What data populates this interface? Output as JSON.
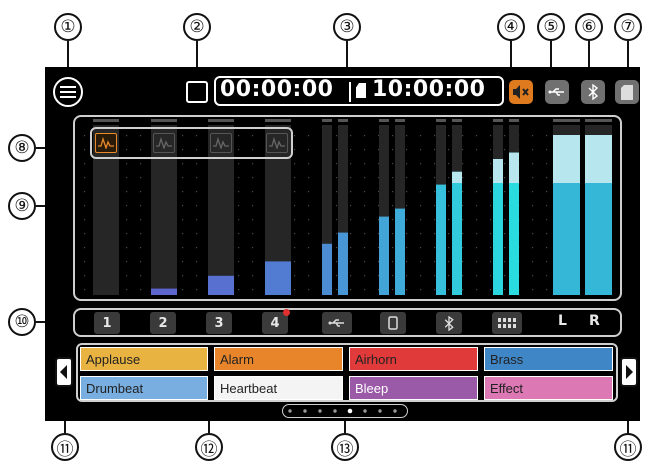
{
  "callouts": [
    "①",
    "②",
    "③",
    "④",
    "⑤",
    "⑥",
    "⑦",
    "⑧",
    "⑨",
    "⑩",
    "⑪",
    "⑫",
    "⑬",
    "⑪"
  ],
  "topbar": {
    "elapsed_time": "00:00:00",
    "remaining_time": "10:00:00",
    "icons": [
      "menu-icon",
      "recording-status-icon",
      "mute-icon",
      "usb-icon",
      "bluetooth-icon",
      "sd-card-icon"
    ]
  },
  "meters": {
    "channels": [
      "1",
      "2",
      "3",
      "4",
      "usb-l",
      "usb-r",
      "phone-l",
      "phone-r",
      "bluetooth-l",
      "bluetooth-r",
      "sound-pad-l",
      "sound-pad-r",
      "main-l",
      "main-r"
    ],
    "levels_fraction": [
      0.0,
      0.04,
      0.12,
      0.21,
      0.32,
      0.39,
      0.49,
      0.54,
      0.69,
      0.77,
      0.85,
      0.89,
      1.0,
      1.0
    ],
    "clip_selector_icons": [
      "waveform-icon",
      "waveform-icon",
      "waveform-icon",
      "waveform-icon"
    ],
    "active_clip_index": 0
  },
  "channel_bar": {
    "buttons": [
      "1",
      "2",
      "3",
      "4",
      "",
      "",
      "",
      "",
      "L",
      "R"
    ],
    "icons": [
      "",
      "",
      "",
      "",
      "usb-icon",
      "smartphone-icon",
      "bluetooth-icon",
      "sound-pad-icon",
      "",
      ""
    ],
    "channel_4_indicator_color": "#e03030"
  },
  "sound_pads": [
    {
      "label": "Applause",
      "color": "#e8b340",
      "text_color": "#222222"
    },
    {
      "label": "Alarm",
      "color": "#e8852a",
      "text_color": "#222222"
    },
    {
      "label": "Airhorn",
      "color": "#e03a3a",
      "text_color": "#222222"
    },
    {
      "label": "Brass",
      "color": "#3f86c7",
      "text_color": "#222222"
    },
    {
      "label": "Drumbeat",
      "color": "#78aee0",
      "text_color": "#222222"
    },
    {
      "label": "Heartbeat",
      "color": "#f4f4f4",
      "text_color": "#222222"
    },
    {
      "label": "Bleep",
      "color": "#9b5aa8",
      "text_color": "#ffffff"
    },
    {
      "label": "Effect",
      "color": "#dc78b4",
      "text_color": "#222222"
    }
  ],
  "page_indicator": {
    "page_count": 8,
    "current_page": 5
  }
}
